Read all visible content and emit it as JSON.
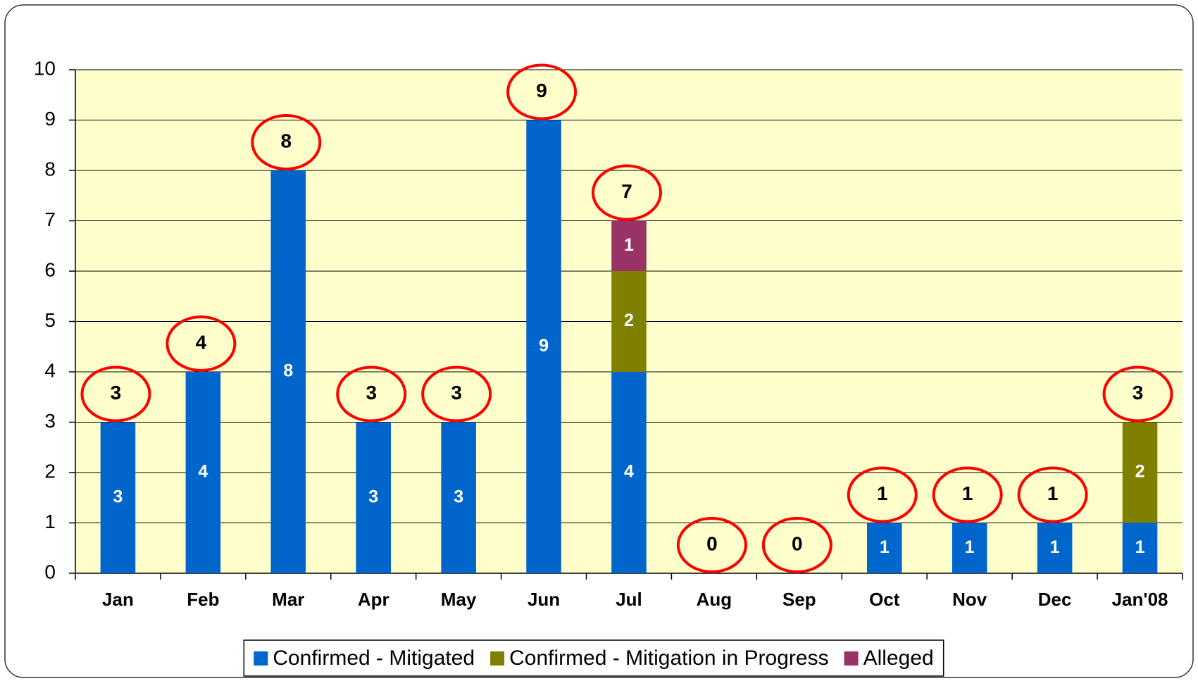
{
  "chart_data": {
    "type": "stacked_bar",
    "categories": [
      "Jan",
      "Feb",
      "Mar",
      "Apr",
      "May",
      "Jun",
      "Jul",
      "Aug",
      "Sep",
      "Oct",
      "Nov",
      "Dec",
      "Jan'08"
    ],
    "series": [
      {
        "name": "Confirmed - Mitigated",
        "color": "#0066cc",
        "values": [
          3,
          4,
          8,
          3,
          3,
          9,
          4,
          0,
          0,
          1,
          1,
          1,
          1
        ]
      },
      {
        "name": "Confirmed - Mitigation in Progress",
        "color": "#808000",
        "values": [
          0,
          0,
          0,
          0,
          0,
          0,
          2,
          0,
          0,
          0,
          0,
          0,
          2
        ]
      },
      {
        "name": "Alleged",
        "color": "#993366",
        "values": [
          0,
          0,
          0,
          0,
          0,
          0,
          1,
          0,
          0,
          0,
          0,
          0,
          0
        ]
      }
    ],
    "totals": [
      3,
      4,
      8,
      3,
      3,
      9,
      7,
      0,
      0,
      1,
      1,
      1,
      3
    ],
    "ylim": [
      0,
      10
    ],
    "yticks": [
      0,
      1,
      2,
      3,
      4,
      5,
      6,
      7,
      8,
      9,
      10
    ],
    "grid": true,
    "legend": "bottom"
  }
}
